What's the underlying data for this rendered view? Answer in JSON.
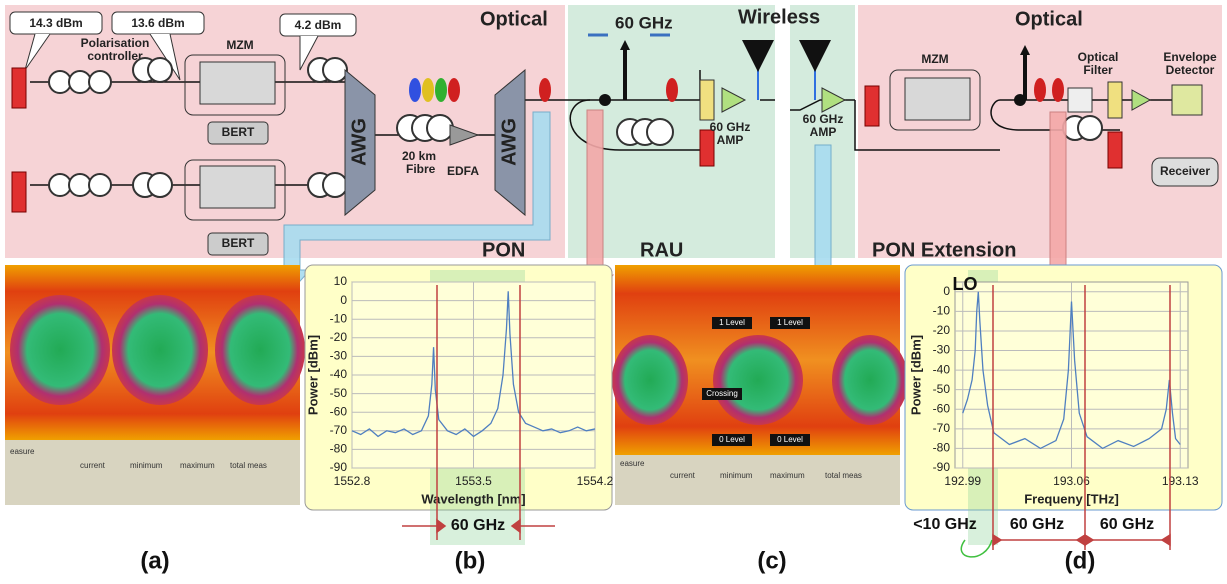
{
  "diagram": {
    "section_optical_left": "Optical",
    "section_60ghz": "60 GHz",
    "section_wireless": "Wireless",
    "section_optical_right": "Optical",
    "power_1": "14.3 dBm",
    "power_2": "13.6 dBm",
    "power_3": "4.2 dBm",
    "polarisation_1": "Polarisation",
    "polarisation_2": "controller",
    "mzm_left": "MZM",
    "bert_1": "BERT",
    "bert_2": "BERT",
    "awg_1": "AWG",
    "awg_2": "AWG",
    "fibre_1": "20 km",
    "fibre_2": "Fibre",
    "edfa": "EDFA",
    "amp1_1": "60 GHz",
    "amp1_2": "AMP",
    "amp2_1": "60 GHz",
    "amp2_2": "AMP",
    "mzm_right": "MZM",
    "filter_1": "Optical",
    "filter_2": "Filter",
    "detector_1": "Envelope",
    "detector_2": "Detector",
    "receiver": "Receiver",
    "pon": "PON",
    "rau": "RAU",
    "pon_extension": "PON Extension"
  },
  "eye_a": {
    "tab": "easure",
    "columns": [
      "current",
      "minimum",
      "maximum",
      "total meas"
    ]
  },
  "eye_c": {
    "tab": "easure",
    "columns": [
      "current",
      "minimum",
      "maximum",
      "total meas"
    ],
    "markers": [
      "1 Level",
      "1 Level",
      "Crossing",
      "0 Level",
      "0 Level"
    ]
  },
  "panel_labels": [
    "(a)",
    "(b)",
    "(c)",
    "(d)"
  ],
  "chart_data": [
    {
      "type": "line",
      "x_label": "Wavelength [nm]",
      "y_label": "Power [dBm]",
      "color": "#4f7fc0",
      "x": [
        1552.8,
        1552.85,
        1552.9,
        1552.95,
        1553.0,
        1553.05,
        1553.1,
        1553.15,
        1553.2,
        1553.24,
        1553.26,
        1553.27,
        1553.28,
        1553.3,
        1553.35,
        1553.4,
        1553.45,
        1553.5,
        1553.55,
        1553.6,
        1553.64,
        1553.67,
        1553.69,
        1553.7,
        1553.71,
        1553.73,
        1553.76,
        1553.8,
        1553.85,
        1553.9,
        1553.95,
        1554.0,
        1554.05,
        1554.1,
        1554.15,
        1554.2
      ],
      "values": [
        -70,
        -72,
        -69,
        -73,
        -70,
        -71,
        -69,
        -72,
        -70,
        -62,
        -45,
        -25,
        -48,
        -64,
        -70,
        -72,
        -69,
        -73,
        -70,
        -66,
        -58,
        -40,
        -15,
        5,
        -18,
        -45,
        -60,
        -66,
        -68,
        -70,
        -69,
        -71,
        -70,
        -68,
        -70,
        -69
      ],
      "xlim": [
        1552.8,
        1554.2
      ],
      "xticks": [
        1552.8,
        1553.5,
        1554.2
      ],
      "ylim": [
        -90,
        10
      ],
      "yticks": [
        10,
        0,
        -10,
        -20,
        -30,
        -40,
        -50,
        -60,
        -70,
        -80,
        -90
      ],
      "grid": true,
      "annotations": [
        "60 GHz"
      ]
    },
    {
      "type": "line",
      "x_label": "Frequeny [THz]",
      "y_label": "Power [dBm]",
      "color": "#4f7fc0",
      "x": [
        192.99,
        192.993,
        192.996,
        192.998,
        192.999,
        193.0,
        193.001,
        193.003,
        193.006,
        193.01,
        193.02,
        193.03,
        193.04,
        193.05,
        193.055,
        193.058,
        193.06,
        193.062,
        193.065,
        193.07,
        193.08,
        193.09,
        193.1,
        193.11,
        193.118,
        193.121,
        193.123,
        193.125,
        193.127,
        193.13
      ],
      "values": [
        -62,
        -55,
        -45,
        -30,
        -10,
        0,
        -15,
        -40,
        -58,
        -72,
        -78,
        -75,
        -80,
        -76,
        -65,
        -40,
        -5,
        -35,
        -62,
        -74,
        -80,
        -76,
        -79,
        -75,
        -70,
        -60,
        -45,
        -62,
        -75,
        -78
      ],
      "xlim": [
        192.985,
        193.135
      ],
      "xticks": [
        192.99,
        193.06,
        193.13
      ],
      "ylim": [
        -90,
        5
      ],
      "yticks": [
        0,
        -10,
        -20,
        -30,
        -40,
        -50,
        -60,
        -70,
        -80,
        -90
      ],
      "grid": true,
      "annotations": [
        "LO",
        "<10 GHz",
        "60 GHz",
        "60 GHz"
      ]
    }
  ]
}
